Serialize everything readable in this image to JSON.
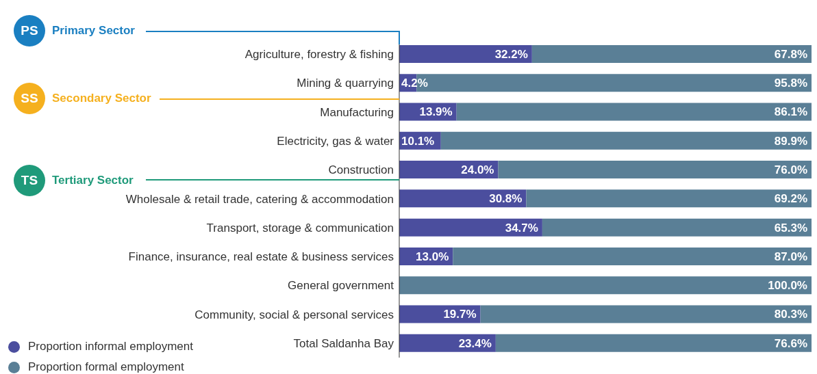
{
  "chart_data": {
    "type": "bar",
    "orientation": "horizontal",
    "stacked": true,
    "categories": [
      "Agriculture, forestry & fishing",
      "Mining & quarrying",
      "Manufacturing",
      "Electricity, gas & water",
      "Construction",
      "Wholesale & retail trade, catering & accommodation",
      "Transport, storage & communication",
      "Finance, insurance, real estate & business services",
      "General government",
      "Community, social & personal services",
      "Total Saldanha Bay"
    ],
    "series": [
      {
        "name": "Proportion informal employment",
        "color": "#4b4e9e",
        "values": [
          32.2,
          4.2,
          13.9,
          10.1,
          24.0,
          30.8,
          34.7,
          13.0,
          0,
          19.7,
          23.4
        ],
        "value_labels": [
          "32.2%",
          "4.2%",
          "13.9%",
          "10.1%",
          "24.0%",
          "30.8%",
          "34.7%",
          "13.0%",
          null,
          "19.7%",
          "23.4%"
        ]
      },
      {
        "name": "Proportion formal employment",
        "color": "#5a7f96",
        "values": [
          67.8,
          95.8,
          86.1,
          89.9,
          76.0,
          69.2,
          65.3,
          87.0,
          100.0,
          80.3,
          76.6
        ],
        "value_labels": [
          "67.8%",
          "95.8%",
          "86.1%",
          "89.9%",
          "76.0%",
          "69.2%",
          "65.3%",
          "87.0%",
          "100.0%",
          "80.3%",
          "76.6%"
        ]
      }
    ],
    "xlim": [
      0,
      100
    ],
    "tick_labels": "y",
    "legend": "bottom left",
    "annotations": [
      "PS",
      "Primary Sector",
      "SS",
      "Secondary Sector",
      "TS",
      "Tertiary Sector"
    ]
  }
}
